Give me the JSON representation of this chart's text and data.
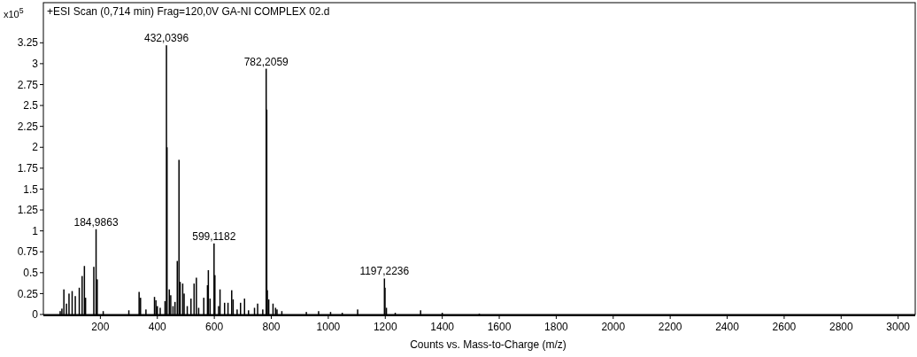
{
  "chart_data": {
    "type": "bar",
    "title": "+ESI Scan (0,714 min) Frag=120,0V GA-NI COMPLEX 02.d",
    "xlabel": "Counts vs. Mass-to-Charge (m/z)",
    "ylabel": "x10$^{5}$",
    "x": [
      59,
      65,
      72,
      81,
      90,
      101,
      112,
      126,
      136,
      144,
      148,
      177,
      185,
      189,
      210,
      300,
      336,
      341,
      360,
      390,
      395,
      400,
      410,
      427,
      432,
      434,
      442,
      447,
      455,
      462,
      470,
      476,
      480,
      489,
      494,
      505,
      518,
      529,
      537,
      545,
      563,
      576,
      579,
      585,
      599,
      602,
      615,
      620,
      636,
      648,
      661,
      666,
      680,
      692,
      706,
      720,
      741,
      752,
      770,
      782,
      784,
      786,
      791,
      806,
      815,
      820,
      837,
      923,
      966,
      1008,
      1049,
      1103,
      1197,
      1199,
      1204,
      1235,
      1324,
      1400,
      1530
    ],
    "values": [
      0.04,
      0.07,
      0.3,
      0.13,
      0.25,
      0.28,
      0.22,
      0.32,
      0.46,
      0.58,
      0.2,
      0.57,
      1.02,
      0.42,
      0.04,
      0.05,
      0.27,
      0.2,
      0.06,
      0.21,
      0.17,
      0.1,
      0.08,
      0.16,
      3.22,
      2.0,
      0.3,
      0.23,
      0.1,
      0.15,
      0.64,
      1.85,
      0.39,
      0.37,
      0.25,
      0.1,
      0.19,
      0.37,
      0.44,
      0.08,
      0.2,
      0.35,
      0.53,
      0.19,
      0.85,
      0.47,
      0.1,
      0.3,
      0.14,
      0.14,
      0.29,
      0.18,
      0.06,
      0.14,
      0.19,
      0.05,
      0.08,
      0.13,
      0.06,
      2.94,
      2.45,
      0.29,
      0.18,
      0.13,
      0.08,
      0.06,
      0.04,
      0.03,
      0.04,
      0.03,
      0.02,
      0.06,
      0.43,
      0.32,
      0.08,
      0.02,
      0.05,
      0.02,
      0.01
    ],
    "color": "#000000",
    "xlim": [
      0,
      3060
    ],
    "xticks": [
      200,
      400,
      600,
      800,
      1000,
      1200,
      1400,
      1600,
      1800,
      2000,
      2200,
      2400,
      2600,
      2800,
      3000
    ],
    "ylim": [
      0,
      3.73
    ],
    "yticks": [
      0,
      0.25,
      0.5,
      0.75,
      1,
      1.25,
      1.5,
      1.75,
      2,
      2.25,
      2.5,
      2.75,
      3,
      3.25
    ],
    "annotations": [
      {
        "text": "184,9863",
        "x": 185,
        "y": 1.02
      },
      {
        "text": "432,0396",
        "x": 432,
        "y": 3.22
      },
      {
        "text": "599,1182",
        "x": 599,
        "y": 0.85
      },
      {
        "text": "782,2059",
        "x": 782,
        "y": 2.94
      },
      {
        "text": "1197,2236",
        "x": 1197,
        "y": 0.43
      }
    ]
  }
}
